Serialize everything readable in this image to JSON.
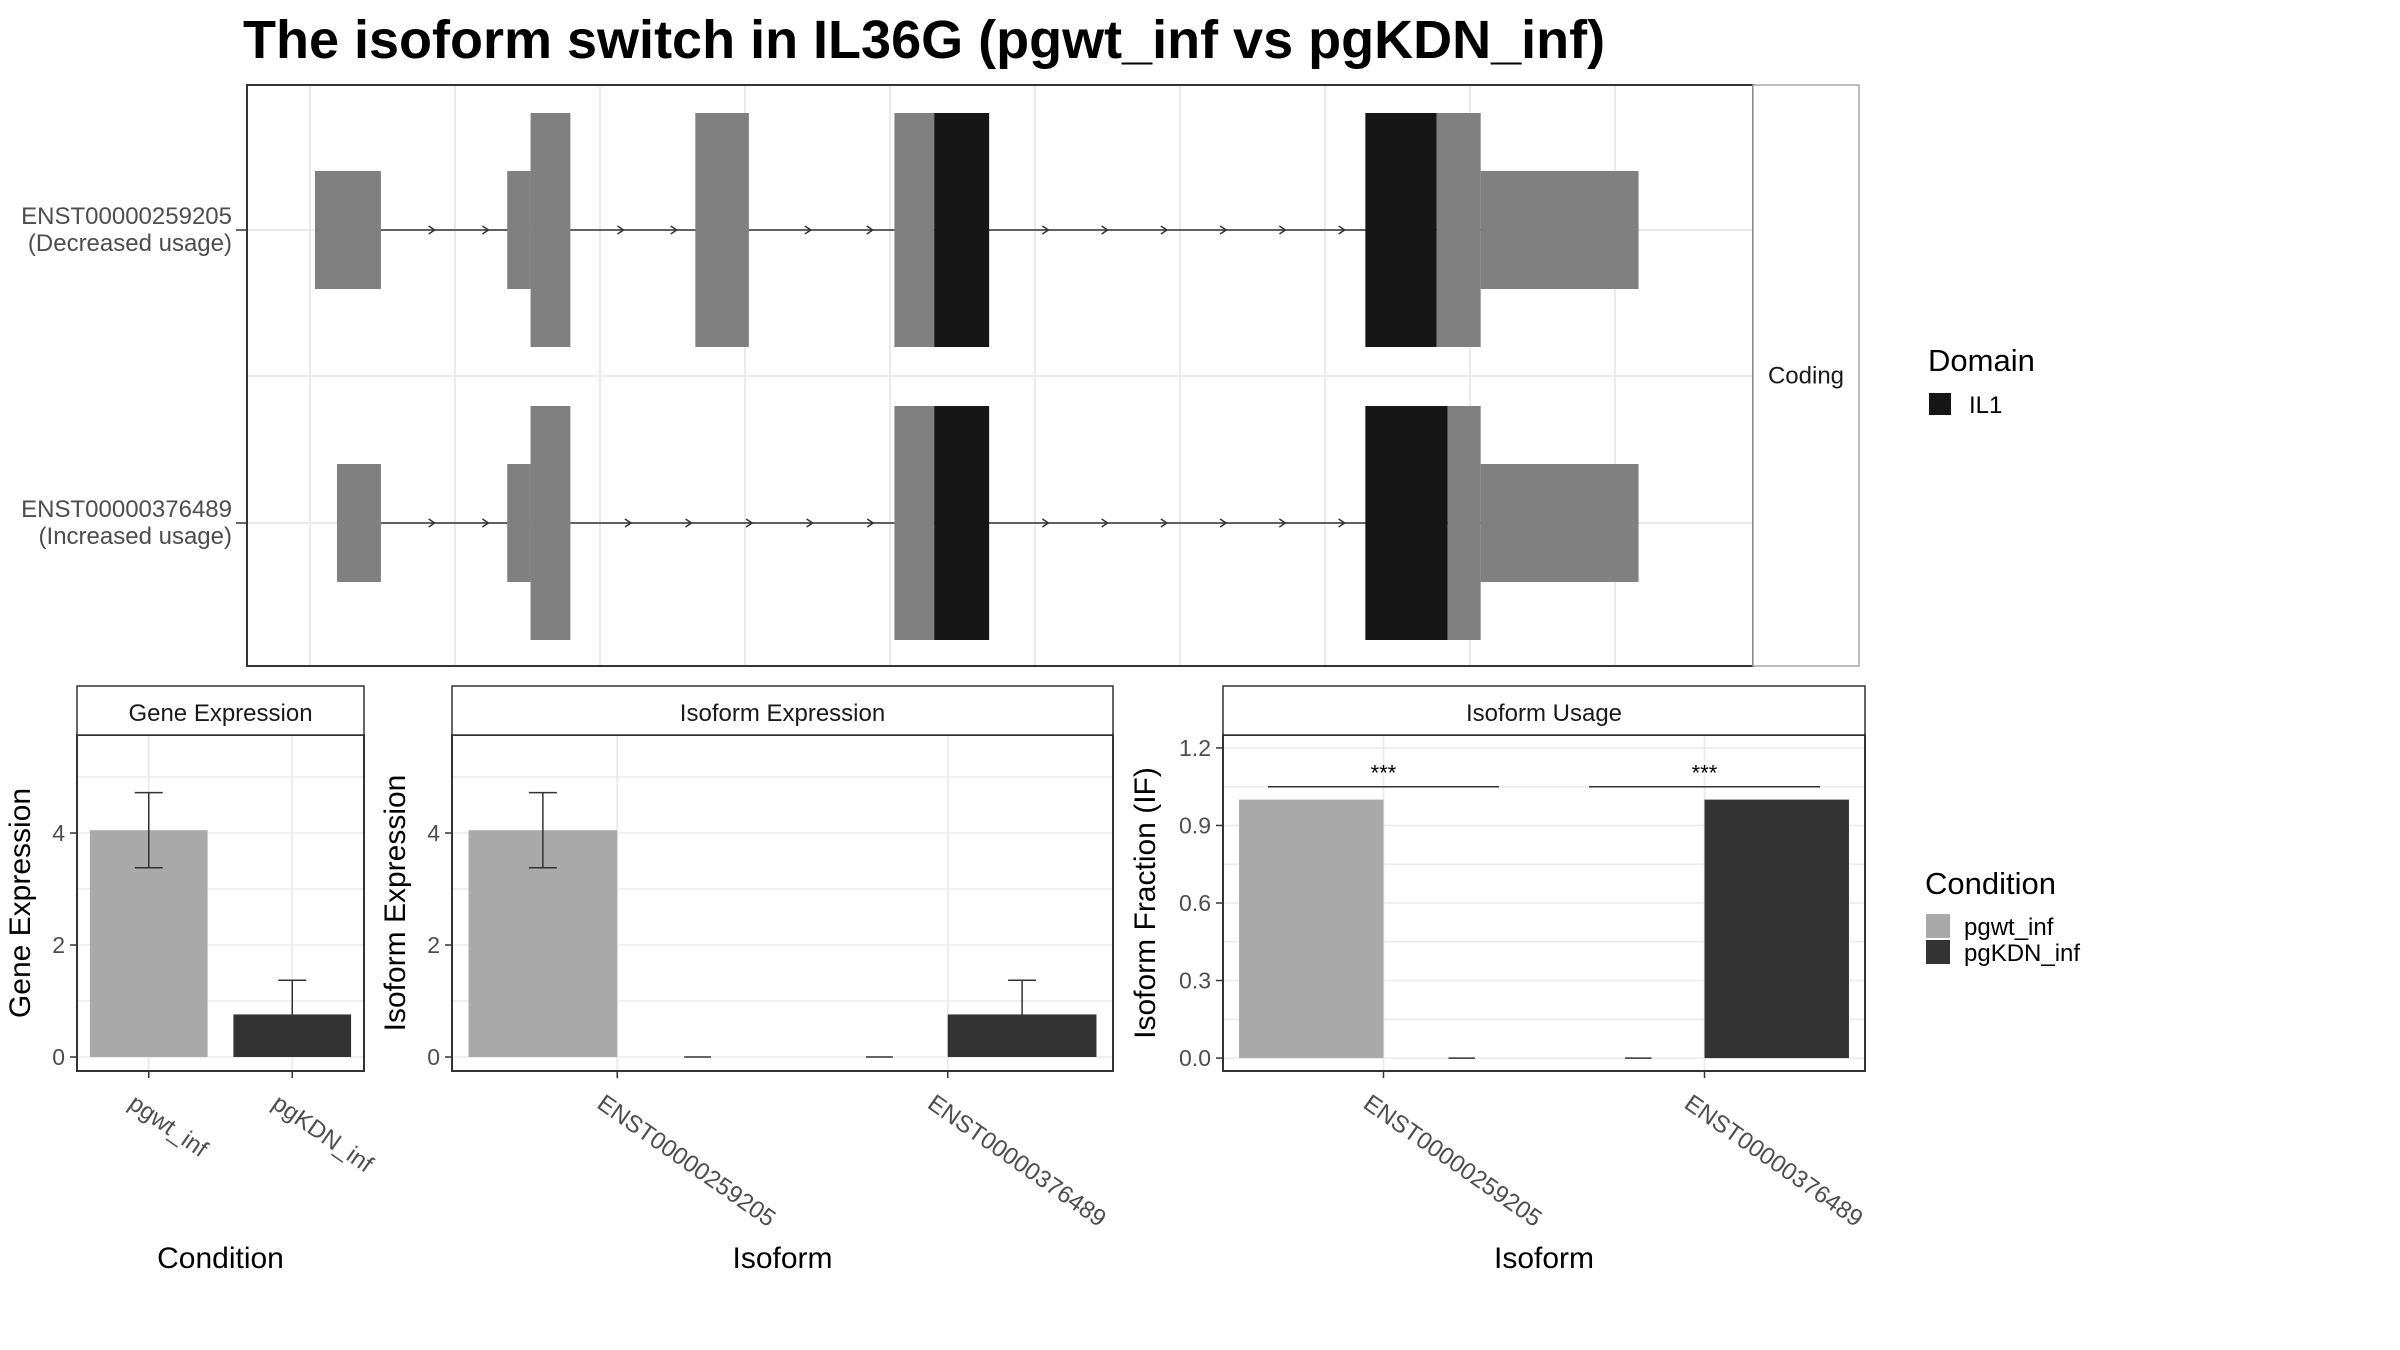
{
  "title": "The isoform switch in IL36G (pgwt_inf vs pgKDN_inf)",
  "colors": {
    "utr": "#808080",
    "domain": "#161616",
    "pgwt_inf": "#a9a9a9",
    "pgKDN_inf": "#333333",
    "grid": "#ebebeb",
    "panel_border": "#333333",
    "strip_border": "#a6a6a6"
  },
  "structure": {
    "strip_label": "Coding",
    "isoforms": [
      {
        "id": "ENST00000259205",
        "label_line1": "ENST00000259205",
        "label_line2": "(Decreased usage)",
        "exons": [
          {
            "start": 0.0,
            "end": 0.048,
            "type": "utr"
          },
          {
            "start": 0.14,
            "end": 0.157,
            "type": "utr"
          },
          {
            "start": 0.157,
            "end": 0.186,
            "type": "cds"
          },
          {
            "start": 0.277,
            "end": 0.316,
            "type": "cds"
          },
          {
            "start": 0.422,
            "end": 0.451,
            "type": "cds"
          },
          {
            "start": 0.451,
            "end": 0.491,
            "type": "domain"
          },
          {
            "start": 0.765,
            "end": 0.817,
            "type": "domain"
          },
          {
            "start": 0.817,
            "end": 0.849,
            "type": "cds"
          },
          {
            "start": 0.849,
            "end": 0.964,
            "type": "utr"
          }
        ]
      },
      {
        "id": "ENST00000376489",
        "label_line1": "ENST00000376489",
        "label_line2": "(Increased usage)",
        "exons": [
          {
            "start": 0.016,
            "end": 0.048,
            "type": "utr"
          },
          {
            "start": 0.14,
            "end": 0.157,
            "type": "utr"
          },
          {
            "start": 0.157,
            "end": 0.186,
            "type": "cds"
          },
          {
            "start": 0.422,
            "end": 0.451,
            "type": "cds"
          },
          {
            "start": 0.451,
            "end": 0.491,
            "type": "domain"
          },
          {
            "start": 0.765,
            "end": 0.825,
            "type": "domain"
          },
          {
            "start": 0.825,
            "end": 0.849,
            "type": "cds"
          },
          {
            "start": 0.849,
            "end": 0.964,
            "type": "utr"
          }
        ]
      }
    ]
  },
  "legend_domain": {
    "title": "Domain",
    "items": [
      {
        "label": "IL1",
        "color": "#161616"
      }
    ]
  },
  "legend_condition": {
    "title": "Condition",
    "items": [
      {
        "label": "pgwt_inf",
        "color": "#a9a9a9"
      },
      {
        "label": "pgKDN_inf",
        "color": "#333333"
      }
    ]
  },
  "chart_data": [
    {
      "type": "bar",
      "strip": "Gene Expression",
      "xlabel": "Condition",
      "ylabel": "Gene Expression",
      "ylim": [
        -0.25,
        5.75
      ],
      "yticks": [
        0,
        2,
        4
      ],
      "categories": [
        "pgwt_inf",
        "pgKDN_inf"
      ],
      "values": [
        4.05,
        0.76
      ],
      "errors": [
        [
          3.38,
          4.72
        ],
        [
          0.15,
          1.37
        ]
      ],
      "fill_conditions": [
        "pgwt_inf",
        "pgKDN_inf"
      ]
    },
    {
      "type": "bar",
      "strip": "Isoform Expression",
      "xlabel": "Isoform",
      "ylabel": "Isoform Expression",
      "ylim": [
        -0.25,
        5.75
      ],
      "yticks": [
        0,
        2,
        4
      ],
      "categories": [
        "ENST00000259205",
        "ENST00000376489"
      ],
      "series": [
        {
          "name": "pgwt_inf",
          "values": [
            4.05,
            0.0
          ],
          "errors": [
            [
              3.38,
              4.72
            ],
            null
          ]
        },
        {
          "name": "pgKDN_inf",
          "values": [
            0.0,
            0.76
          ],
          "errors": [
            null,
            [
              0.15,
              1.37
            ]
          ]
        }
      ]
    },
    {
      "type": "bar",
      "strip": "Isoform Usage",
      "xlabel": "Isoform",
      "ylabel": "Isoform Fraction (IF)",
      "ylim": [
        -0.05,
        1.25
      ],
      "yticks": [
        "0.0",
        "0.3",
        "0.6",
        "0.9",
        "1.2"
      ],
      "categories": [
        "ENST00000259205",
        "ENST00000376489"
      ],
      "series": [
        {
          "name": "pgwt_inf",
          "values": [
            1.0,
            0.0
          ]
        },
        {
          "name": "pgKDN_inf",
          "values": [
            0.0,
            1.0
          ]
        }
      ],
      "significance": [
        {
          "category": "ENST00000259205",
          "label": "***",
          "y": 1.05
        },
        {
          "category": "ENST00000376489",
          "label": "***",
          "y": 1.05
        }
      ]
    }
  ]
}
